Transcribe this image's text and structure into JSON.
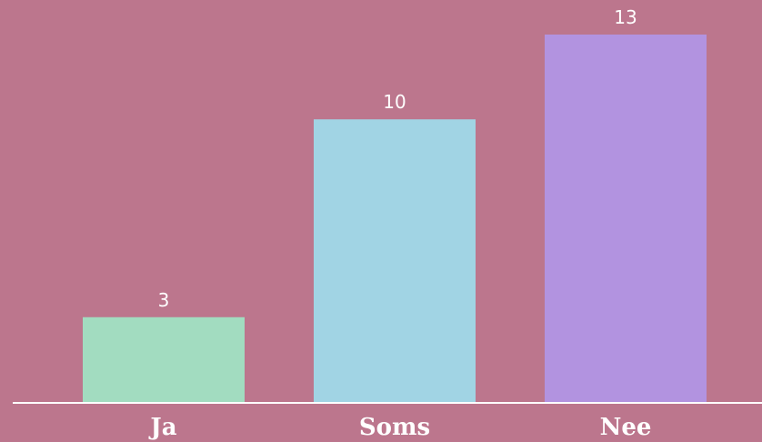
{
  "chart_data": {
    "type": "bar",
    "categories": [
      "Ja",
      "Soms",
      "Nee"
    ],
    "values": [
      3,
      10,
      13
    ],
    "value_labels": [
      "3",
      "10",
      "13"
    ],
    "colors": [
      "#a2dcc0",
      "#a1d4e4",
      "#b293e0"
    ],
    "background": "#bc768d",
    "axis_color": "#ffffff",
    "ylim": [
      0,
      13
    ],
    "grid": false
  }
}
